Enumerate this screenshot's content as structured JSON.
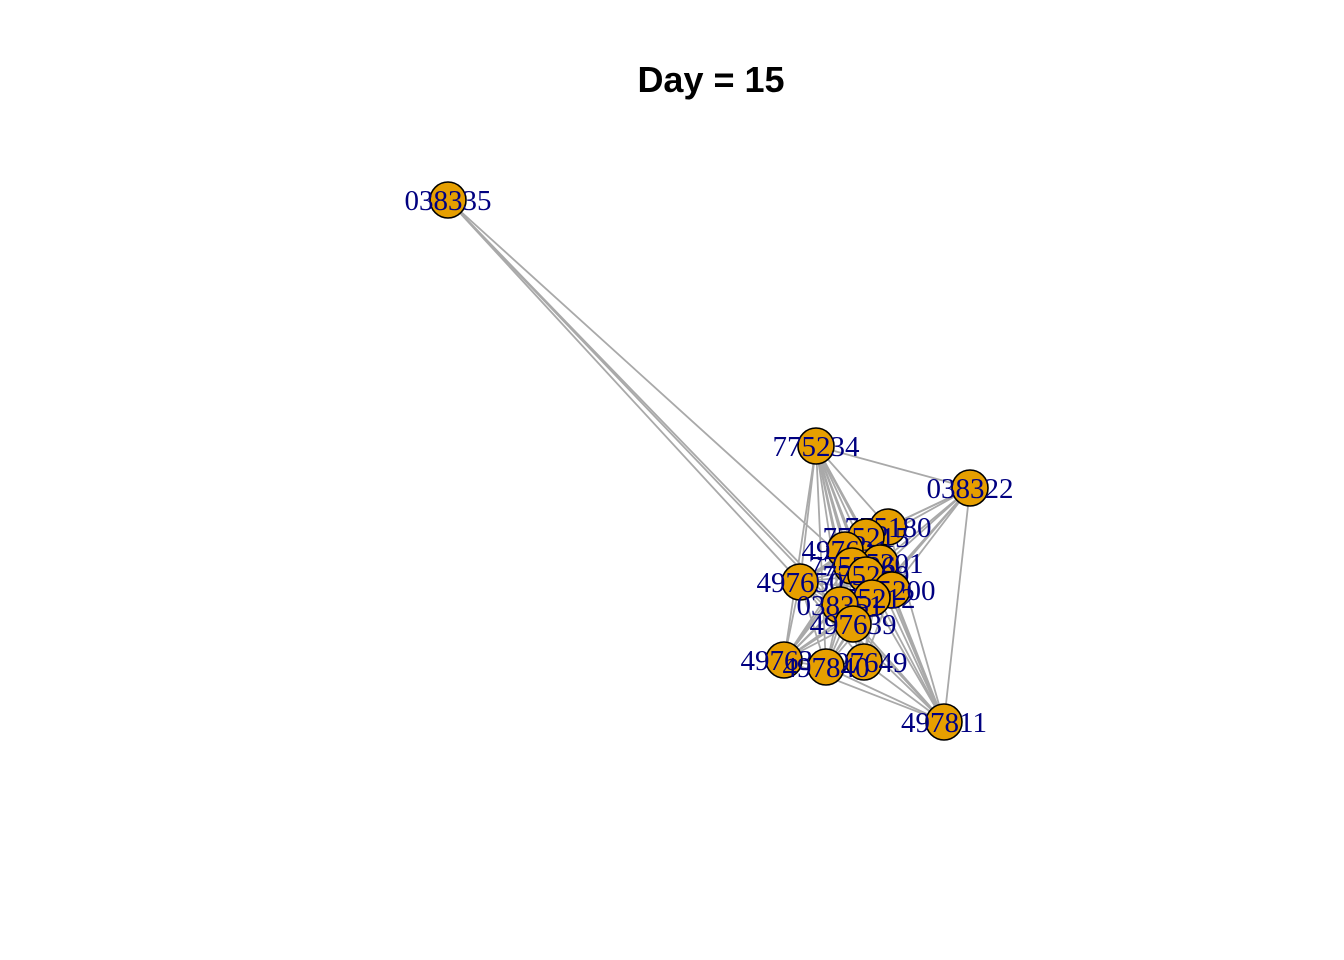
{
  "title": "Day = 15",
  "colors": {
    "node_fill": "#E69F00",
    "node_stroke": "#000000",
    "label": "#000080",
    "edge": "#A9A9A9"
  },
  "nodes": [
    {
      "id": "038335",
      "label": "038335"
    },
    {
      "id": "775234",
      "label": "775234"
    },
    {
      "id": "038322",
      "label": "038322"
    },
    {
      "id": "775180",
      "label": "775180"
    },
    {
      "id": "775215",
      "label": "775215"
    },
    {
      "id": "497631",
      "label": "497631"
    },
    {
      "id": "775201",
      "label": "775201"
    },
    {
      "id": "775206",
      "label": "775206"
    },
    {
      "id": "775209",
      "label": "775209"
    },
    {
      "id": "775200",
      "label": "775200"
    },
    {
      "id": "775212",
      "label": "775212"
    },
    {
      "id": "497650",
      "label": "497650"
    },
    {
      "id": "038351",
      "label": "038351"
    },
    {
      "id": "497639",
      "label": "497639"
    },
    {
      "id": "497630",
      "label": "497630"
    },
    {
      "id": "497649",
      "label": "497649"
    },
    {
      "id": "497840",
      "label": "497840"
    },
    {
      "id": "497811",
      "label": "497811"
    }
  ],
  "edges": [
    [
      "038335",
      "497650"
    ],
    [
      "038335",
      "038351"
    ],
    [
      "038335",
      "775206"
    ],
    [
      "038335",
      "497639"
    ],
    [
      "775234",
      "038322"
    ],
    [
      "775234",
      "775180"
    ],
    [
      "775234",
      "775215"
    ],
    [
      "775234",
      "497631"
    ],
    [
      "775234",
      "775201"
    ],
    [
      "775234",
      "775206"
    ],
    [
      "775234",
      "775209"
    ],
    [
      "775234",
      "775200"
    ],
    [
      "775234",
      "775212"
    ],
    [
      "775234",
      "497650"
    ],
    [
      "775234",
      "038351"
    ],
    [
      "775234",
      "497639"
    ],
    [
      "775234",
      "497630"
    ],
    [
      "775234",
      "497649"
    ],
    [
      "775234",
      "497840"
    ],
    [
      "775234",
      "497811"
    ],
    [
      "038322",
      "775180"
    ],
    [
      "038322",
      "775215"
    ],
    [
      "038322",
      "775201"
    ],
    [
      "038322",
      "775200"
    ],
    [
      "038322",
      "775212"
    ],
    [
      "038322",
      "497650"
    ],
    [
      "038322",
      "038351"
    ],
    [
      "038322",
      "497639"
    ],
    [
      "038322",
      "497811"
    ],
    [
      "775180",
      "497650"
    ],
    [
      "775180",
      "497630"
    ],
    [
      "775180",
      "497649"
    ],
    [
      "775180",
      "497840"
    ],
    [
      "775180",
      "497811"
    ],
    [
      "775180",
      "497639"
    ],
    [
      "775215",
      "497650"
    ],
    [
      "775215",
      "497630"
    ],
    [
      "775215",
      "497840"
    ],
    [
      "775215",
      "497811"
    ],
    [
      "497650",
      "497630"
    ],
    [
      "497650",
      "497840"
    ],
    [
      "497650",
      "497649"
    ],
    [
      "497650",
      "497811"
    ],
    [
      "497650",
      "497639"
    ],
    [
      "497650",
      "038351"
    ],
    [
      "497650",
      "775200"
    ],
    [
      "497630",
      "497840"
    ],
    [
      "497630",
      "497649"
    ],
    [
      "497630",
      "497639"
    ],
    [
      "497630",
      "038351"
    ],
    [
      "497630",
      "775200"
    ],
    [
      "497630",
      "775212"
    ],
    [
      "497630",
      "497811"
    ],
    [
      "497840",
      "497649"
    ],
    [
      "497840",
      "497811"
    ],
    [
      "497840",
      "497639"
    ],
    [
      "497840",
      "775200"
    ],
    [
      "497840",
      "775212"
    ],
    [
      "497840",
      "038351"
    ],
    [
      "497649",
      "497811"
    ],
    [
      "497649",
      "497639"
    ],
    [
      "497649",
      "775200"
    ],
    [
      "497649",
      "775212"
    ],
    [
      "497649",
      "038351"
    ],
    [
      "497811",
      "497639"
    ],
    [
      "497811",
      "775200"
    ],
    [
      "497811",
      "775212"
    ],
    [
      "497811",
      "038351"
    ],
    [
      "497811",
      "775201"
    ],
    [
      "497811",
      "775209"
    ],
    [
      "775200",
      "497639"
    ],
    [
      "775212",
      "497639"
    ],
    [
      "038351",
      "497639"
    ],
    [
      "775201",
      "497650"
    ],
    [
      "775209",
      "497650"
    ],
    [
      "775206",
      "497630"
    ],
    [
      "775201",
      "497630"
    ]
  ]
}
